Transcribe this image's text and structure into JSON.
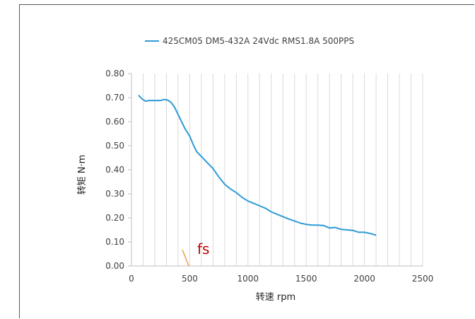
{
  "chart_data": {
    "type": "line",
    "title": "",
    "legend": {
      "position": "top",
      "entries": [
        "425CM05 DM5-432A 24Vdc RMS1.8A 500PPS"
      ]
    },
    "xlabel": "转速 rpm",
    "ylabel": "转矩 N·m",
    "xlim": [
      0,
      2500
    ],
    "ylim": [
      0,
      0.8
    ],
    "xticks": [
      0,
      500,
      1000,
      1500,
      2000,
      2500
    ],
    "xtick_labels": [
      "0",
      "500",
      "1000",
      "1500",
      "2000",
      "2500"
    ],
    "yticks": [
      0,
      0.1,
      0.2,
      0.3,
      0.4,
      0.5,
      0.6,
      0.7,
      0.8
    ],
    "ytick_labels": [
      "0.00",
      "0.10",
      "0.20",
      "0.30",
      "0.40",
      "0.50",
      "0.60",
      "0.70",
      "0.80"
    ],
    "grid": {
      "vertical": true,
      "vertical_step": 100,
      "horizontal": false
    },
    "series": [
      {
        "name": "425CM05 DM5-432A 24Vdc RMS1.8A 500PPS",
        "color": "#2e9bd6",
        "x": [
          60,
          90,
          120,
          150,
          200,
          250,
          280,
          310,
          340,
          370,
          400,
          430,
          460,
          500,
          530,
          560,
          600,
          650,
          700,
          750,
          800,
          850,
          900,
          950,
          1000,
          1050,
          1100,
          1150,
          1200,
          1250,
          1300,
          1350,
          1400,
          1450,
          1500,
          1550,
          1600,
          1650,
          1700,
          1750,
          1800,
          1850,
          1900,
          1950,
          2000,
          2050,
          2100
        ],
        "y": [
          0.71,
          0.695,
          0.685,
          0.688,
          0.688,
          0.688,
          0.692,
          0.69,
          0.68,
          0.66,
          0.63,
          0.6,
          0.57,
          0.54,
          0.505,
          0.475,
          0.455,
          0.43,
          0.405,
          0.37,
          0.34,
          0.32,
          0.305,
          0.285,
          0.27,
          0.26,
          0.25,
          0.24,
          0.225,
          0.215,
          0.205,
          0.195,
          0.187,
          0.178,
          0.173,
          0.17,
          0.17,
          0.168,
          0.158,
          0.16,
          0.152,
          0.15,
          0.148,
          0.14,
          0.14,
          0.135,
          0.128
        ]
      }
    ],
    "annotations": [
      {
        "text": "fs",
        "color": "#c00000"
      }
    ]
  }
}
